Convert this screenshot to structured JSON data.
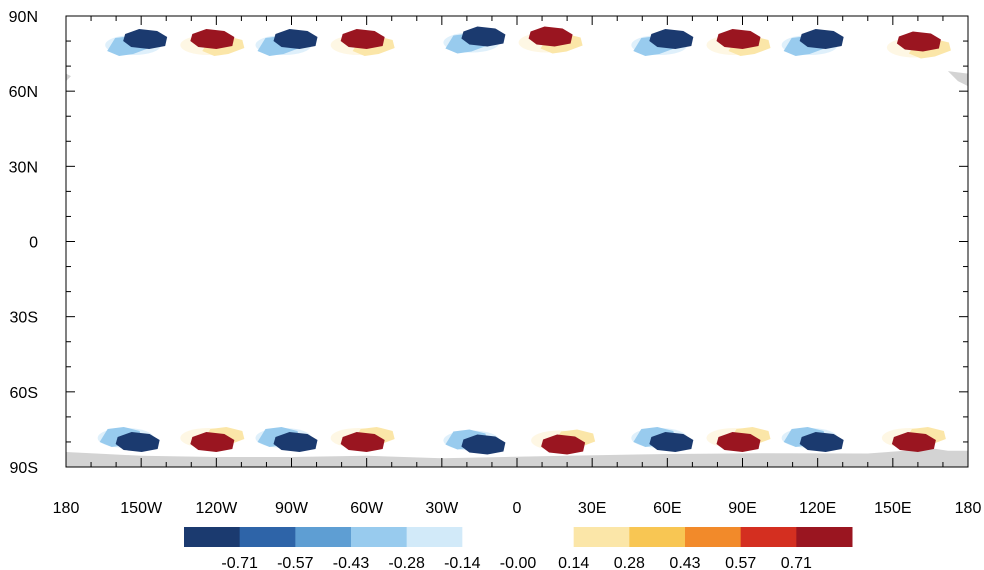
{
  "chart_data": {
    "type": "map",
    "projection": "cylindrical-equidistant",
    "lon_range": [
      -180,
      180
    ],
    "lat_range": [
      -90,
      90
    ],
    "lon_ticks": [
      {
        "value": -180,
        "label": "180"
      },
      {
        "value": -150,
        "label": "150W"
      },
      {
        "value": -120,
        "label": "120W"
      },
      {
        "value": -90,
        "label": "90W"
      },
      {
        "value": -60,
        "label": "60W"
      },
      {
        "value": -30,
        "label": "30W"
      },
      {
        "value": 0,
        "label": "0"
      },
      {
        "value": 30,
        "label": "30E"
      },
      {
        "value": 60,
        "label": "60E"
      },
      {
        "value": 90,
        "label": "90E"
      },
      {
        "value": 120,
        "label": "120E"
      },
      {
        "value": 150,
        "label": "150E"
      },
      {
        "value": 180,
        "label": "180"
      }
    ],
    "lat_ticks": [
      {
        "value": 90,
        "label": "90N"
      },
      {
        "value": 60,
        "label": "60N"
      },
      {
        "value": 30,
        "label": "30N"
      },
      {
        "value": 0,
        "label": "0"
      },
      {
        "value": -30,
        "label": "30S"
      },
      {
        "value": -60,
        "label": "60S"
      },
      {
        "value": -90,
        "label": "90S"
      }
    ],
    "colorbar": {
      "labels": [
        "-0.71",
        "-0.57",
        "-0.43",
        "-0.28",
        "-0.14",
        "-0.00",
        "0.14",
        "0.28",
        "0.43",
        "0.57",
        "0.71"
      ],
      "colors": [
        "#1b3a6f",
        "#2e64a8",
        "#5e9ed3",
        "#98cbee",
        "#d2eaf9",
        "#ffffff",
        "#fbe6a8",
        "#f8c653",
        "#f28a2a",
        "#d42f20",
        "#9a1520"
      ]
    },
    "features": {
      "north_lobes": [
        {
          "lon": -150,
          "lat": 80,
          "sign": "negative"
        },
        {
          "lon": -120,
          "lat": 80,
          "sign": "positive"
        },
        {
          "lon": -90,
          "lat": 80,
          "sign": "negative"
        },
        {
          "lon": -60,
          "lat": 80,
          "sign": "positive"
        },
        {
          "lon": -15,
          "lat": 81,
          "sign": "negative"
        },
        {
          "lon": 15,
          "lat": 81,
          "sign": "positive"
        },
        {
          "lon": 60,
          "lat": 80,
          "sign": "negative"
        },
        {
          "lon": 90,
          "lat": 80,
          "sign": "positive"
        },
        {
          "lon": 120,
          "lat": 80,
          "sign": "negative"
        },
        {
          "lon": 162,
          "lat": 79,
          "sign": "positive"
        }
      ],
      "south_lobes": [
        {
          "lon": -153,
          "lat": -80,
          "sign": "negative"
        },
        {
          "lon": -120,
          "lat": -80,
          "sign": "positive"
        },
        {
          "lon": -90,
          "lat": -80,
          "sign": "negative"
        },
        {
          "lon": -60,
          "lat": -80,
          "sign": "positive"
        },
        {
          "lon": -15,
          "lat": -81,
          "sign": "negative"
        },
        {
          "lon": 20,
          "lat": -81,
          "sign": "positive"
        },
        {
          "lon": 60,
          "lat": -80,
          "sign": "negative"
        },
        {
          "lon": 90,
          "lat": -80,
          "sign": "positive"
        },
        {
          "lon": 120,
          "lat": -80,
          "sign": "negative"
        },
        {
          "lon": 160,
          "lat": -80,
          "sign": "positive"
        }
      ]
    },
    "land_color": "#d3d3d3",
    "grid": false
  }
}
